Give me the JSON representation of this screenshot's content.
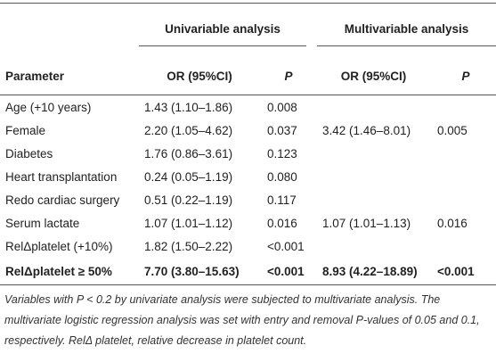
{
  "table": {
    "group_headers": [
      "Univariable analysis",
      "Multivariable analysis"
    ],
    "columns": [
      "Parameter",
      "OR (95%CI)",
      "P",
      "OR (95%CI)",
      "P"
    ],
    "rows": [
      [
        "Age (+10 years)",
        "1.43 (1.10–1.86)",
        "0.008",
        null,
        null
      ],
      [
        "Female",
        "2.20 (1.05–4.62)",
        "0.037",
        "3.42 (1.46–8.01)",
        "0.005"
      ],
      [
        "Diabetes",
        "1.76 (0.86–3.61)",
        "0.123",
        null,
        null
      ],
      [
        "Heart transplantation",
        "0.24 (0.05–1.19)",
        "0.080",
        null,
        null
      ],
      [
        "Redo cardiac surgery",
        "0.51 (0.22–1.19)",
        "0.117",
        null,
        null
      ],
      [
        "Serum lactate",
        "1.07 (1.01–1.12)",
        "0.016",
        "1.07 (1.01–1.13)",
        "0.016"
      ],
      [
        "RelΔplatelet (+10%)",
        "1.82 (1.50–2.22)",
        "<0.001",
        null,
        null
      ],
      [
        "RelΔplatelet ≥ 50%",
        "7.70 (3.80–15.63)",
        "<0.001",
        "8.93 (4.22–18.89)",
        "<0.001"
      ]
    ],
    "footnote": "Variables with P < 0.2 by univariate analysis were subjected to multivariate analysis. The multivariate logistic regression analysis was set with entry and removal P-values of 0.05 and 0.1, respectively. RelΔ platelet, relative decrease in platelet count."
  }
}
